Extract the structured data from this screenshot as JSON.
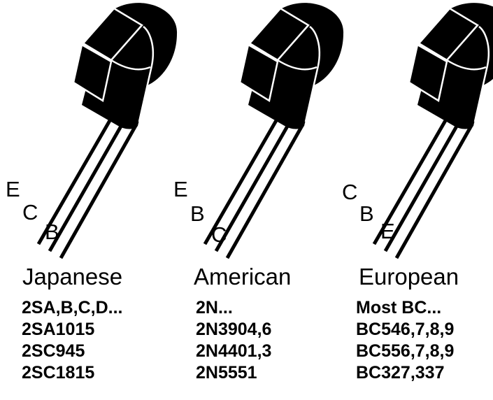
{
  "transistors": [
    {
      "region": "Japanese",
      "pins": [
        "E",
        "C",
        "B"
      ],
      "parts": [
        "2SA,B,C,D...",
        "2SA1015",
        "2SC945",
        "2SC1815"
      ]
    },
    {
      "region": "American",
      "pins": [
        "E",
        "B",
        "C"
      ],
      "parts": [
        "2N...",
        "2N3904,6",
        "2N4401,3",
        "2N5551"
      ]
    },
    {
      "region": "European",
      "pins": [
        "C",
        "B",
        "E"
      ],
      "parts": [
        "Most BC...",
        "BC546,7,8,9",
        "BC556,7,8,9",
        "BC327,337"
      ]
    }
  ],
  "colors": {
    "body": "#000000",
    "outline": "#ffffff",
    "leads": "#000000"
  }
}
